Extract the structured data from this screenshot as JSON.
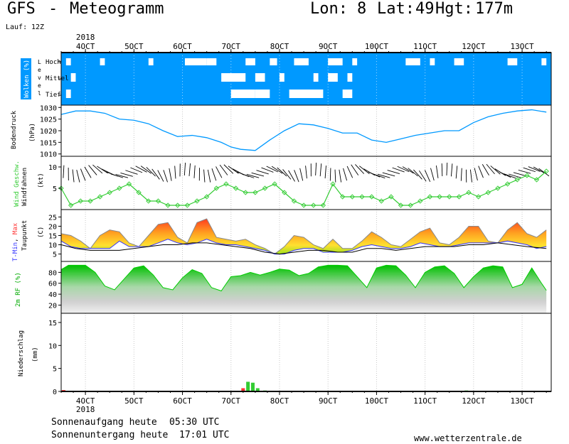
{
  "header": {
    "model": "GFS",
    "dash": "-",
    "product": "Meteogramm",
    "lon_label": "Lon:",
    "lon": "8",
    "lat_label": "Lat:",
    "lat": "49",
    "hgt_label": "Hgt:",
    "hgt": "177m",
    "run_label": "Lauf:",
    "run": "12Z"
  },
  "axis": {
    "year": "2018",
    "dates": [
      "4OCT",
      "5OCT",
      "6OCT",
      "7OCT",
      "8OCT",
      "9OCT",
      "10OCT",
      "11OCT",
      "12OCT",
      "13OCT"
    ]
  },
  "footer": {
    "sunrise_label": "Sonnenaufgang heute",
    "sunrise": "05:30 UTC",
    "sunset_label": "Sonnenuntergang heute",
    "sunset": "17:01 UTC",
    "website": "www.wetterzentrale.de"
  },
  "colors": {
    "cloud_bg": "#0099ff",
    "pressure": "#0099ff",
    "wind": "#33cc33",
    "tmax": "#ff3333",
    "tmin": "#3333ff",
    "rh": "#00cc00",
    "precip": "#33cc33"
  },
  "chart_data": [
    {
      "type": "heatmap",
      "panel": "clouds",
      "ylabel": "Wolken (%)",
      "axis_label": "Level",
      "levels": [
        "Hoch",
        "Mittel",
        "Tief"
      ],
      "hoch_blocks": [
        [
          3.6,
          3.7
        ],
        [
          4.3,
          4.4
        ],
        [
          5.3,
          5.4
        ],
        [
          6.05,
          6.5
        ],
        [
          6.5,
          6.7
        ],
        [
          7.3,
          7.5
        ],
        [
          7.8,
          7.95
        ],
        [
          8.3,
          8.6
        ],
        [
          9.0,
          9.3
        ],
        [
          9.5,
          9.6
        ],
        [
          10.6,
          10.9
        ],
        [
          11.1,
          11.2
        ],
        [
          11.6,
          11.8
        ],
        [
          12.7,
          12.9
        ],
        [
          13.4,
          13.5
        ]
      ],
      "mittel_blocks": [
        [
          3.7,
          3.8
        ],
        [
          6.8,
          7.3
        ],
        [
          7.5,
          7.7
        ],
        [
          8.0,
          8.1
        ],
        [
          8.7,
          8.8
        ],
        [
          9.0,
          9.2
        ],
        [
          9.4,
          9.5
        ]
      ],
      "tief_blocks": [
        [
          3.6,
          3.7
        ],
        [
          7.0,
          7.5
        ],
        [
          7.5,
          7.8
        ],
        [
          8.2,
          8.9
        ],
        [
          9.3,
          9.5
        ]
      ]
    },
    {
      "type": "line",
      "panel": "pressure",
      "ylabel": "Bodendruck (hPa)",
      "ylim": [
        1009,
        1031
      ],
      "yticks": [
        1010,
        1015,
        1020,
        1025,
        1030
      ],
      "x": [
        3.5,
        3.8,
        4.1,
        4.4,
        4.7,
        5.0,
        5.3,
        5.6,
        5.9,
        6.2,
        6.5,
        6.8,
        7.0,
        7.2,
        7.5,
        7.8,
        8.1,
        8.4,
        8.7,
        9.0,
        9.3,
        9.6,
        9.9,
        10.2,
        10.5,
        10.8,
        11.1,
        11.4,
        11.7,
        12.0,
        12.3,
        12.6,
        12.9,
        13.2,
        13.5
      ],
      "values": [
        1027,
        1028.5,
        1028.5,
        1027.5,
        1025,
        1024.5,
        1023,
        1020,
        1017.5,
        1018,
        1017,
        1015,
        1013,
        1012,
        1011.5,
        1016,
        1020,
        1023,
        1022.5,
        1021,
        1019,
        1019,
        1016,
        1015,
        1016.5,
        1018,
        1019,
        1020,
        1020,
        1023.5,
        1026,
        1027.5,
        1028.5,
        1029,
        1028
      ]
    },
    {
      "type": "line",
      "panel": "wind",
      "ylabel": "Wind Geschw. (kt)",
      "ylabel2": "Windfahnen",
      "ylim": [
        0,
        12.5
      ],
      "yticks": [
        5,
        10
      ],
      "x": [
        3.5,
        3.7,
        3.9,
        4.1,
        4.3,
        4.5,
        4.7,
        4.9,
        5.1,
        5.3,
        5.5,
        5.7,
        5.9,
        6.1,
        6.3,
        6.5,
        6.7,
        6.9,
        7.1,
        7.3,
        7.5,
        7.7,
        7.9,
        8.1,
        8.3,
        8.5,
        8.7,
        8.9,
        9.1,
        9.3,
        9.5,
        9.7,
        9.9,
        10.1,
        10.3,
        10.5,
        10.7,
        10.9,
        11.1,
        11.3,
        11.5,
        11.7,
        11.9,
        12.1,
        12.3,
        12.5,
        12.7,
        12.9,
        13.1,
        13.3,
        13.5
      ],
      "values": [
        5,
        1,
        2,
        2,
        3,
        4,
        5,
        6,
        4,
        2,
        2,
        1,
        1,
        1,
        2,
        3,
        5,
        6,
        5,
        4,
        4,
        5,
        6,
        4,
        2,
        1,
        1,
        1,
        6,
        3,
        3,
        3,
        3,
        2,
        3,
        1,
        1,
        2,
        3,
        3,
        3,
        3,
        4,
        3,
        4,
        5,
        6,
        7,
        8,
        7,
        9
      ]
    },
    {
      "type": "area",
      "panel": "temperature",
      "ylabel": "T-Min, Max (C)",
      "ylabel2": "Taupunkt",
      "ylim": [
        1,
        29
      ],
      "yticks": [
        5,
        10,
        15,
        20,
        25
      ],
      "series": [
        {
          "name": "T-Max",
          "x": [
            3.5,
            3.7,
            3.9,
            4.1,
            4.3,
            4.5,
            4.7,
            4.9,
            5.1,
            5.3,
            5.5,
            5.7,
            5.9,
            6.1,
            6.3,
            6.5,
            6.7,
            6.9,
            7.1,
            7.3,
            7.5,
            7.7,
            7.9,
            8.1,
            8.3,
            8.5,
            8.7,
            8.9,
            9.1,
            9.3,
            9.5,
            9.7,
            9.9,
            10.1,
            10.3,
            10.5,
            10.7,
            10.9,
            11.1,
            11.3,
            11.5,
            11.7,
            11.9,
            12.1,
            12.3,
            12.5,
            12.7,
            12.9,
            13.1,
            13.3,
            13.5
          ],
          "values": [
            16,
            15,
            12,
            8,
            15,
            18,
            17,
            11,
            9,
            15,
            21,
            22,
            14,
            11,
            22,
            24,
            14,
            13,
            12,
            13,
            10,
            8,
            5,
            9,
            15,
            14,
            10,
            8,
            13,
            8,
            8,
            12,
            17,
            14,
            10,
            9,
            13,
            17,
            19,
            11,
            10,
            14,
            20,
            20,
            12,
            11,
            18,
            22,
            16,
            14,
            18
          ]
        },
        {
          "name": "T-Min",
          "x": [
            3.5,
            3.7,
            3.9,
            4.1,
            4.3,
            4.5,
            4.7,
            4.9,
            5.1,
            5.3,
            5.5,
            5.7,
            5.9,
            6.1,
            6.3,
            6.5,
            6.7,
            6.9,
            7.1,
            7.3,
            7.5,
            7.7,
            7.9,
            8.1,
            8.3,
            8.5,
            8.7,
            8.9,
            9.1,
            9.3,
            9.5,
            9.7,
            9.9,
            10.1,
            10.3,
            10.5,
            10.7,
            10.9,
            11.1,
            11.3,
            11.5,
            11.7,
            11.9,
            12.1,
            12.3,
            12.5,
            12.7,
            12.9,
            13.1,
            13.3,
            13.5
          ],
          "values": [
            12,
            9,
            8,
            8,
            8,
            8,
            12,
            9,
            9,
            9,
            11,
            13,
            11,
            10,
            11,
            13,
            11,
            10,
            10,
            9,
            8,
            7,
            5,
            5,
            7,
            8,
            8,
            6,
            6,
            6,
            7,
            9,
            10,
            9,
            8,
            8,
            9,
            11,
            10,
            9,
            9,
            10,
            11,
            11,
            11,
            11,
            12,
            11,
            10,
            8,
            9
          ]
        },
        {
          "name": "Taupunkt",
          "x": [
            3.5,
            3.8,
            4.1,
            4.4,
            4.7,
            5.0,
            5.3,
            5.6,
            5.9,
            6.2,
            6.5,
            6.8,
            7.1,
            7.4,
            7.7,
            8.0,
            8.3,
            8.6,
            8.9,
            9.2,
            9.5,
            9.8,
            10.1,
            10.4,
            10.7,
            11.0,
            11.3,
            11.6,
            11.9,
            12.2,
            12.5,
            12.8,
            13.1,
            13.5
          ],
          "values": [
            10,
            8,
            7,
            7,
            7,
            8,
            9,
            10,
            10,
            11,
            11,
            10,
            9,
            8,
            6,
            5,
            6,
            7,
            7,
            6,
            6,
            8,
            8,
            7,
            8,
            9,
            9,
            9,
            10,
            10,
            11,
            10,
            9,
            8
          ]
        }
      ]
    },
    {
      "type": "area",
      "panel": "humidity",
      "ylabel": "2m RF (%)",
      "ylim": [
        5,
        100
      ],
      "yticks": [
        20,
        40,
        60,
        80
      ],
      "x": [
        3.5,
        3.65,
        3.8,
        4.0,
        4.2,
        4.4,
        4.6,
        4.8,
        5.0,
        5.2,
        5.4,
        5.6,
        5.8,
        6.0,
        6.2,
        6.4,
        6.6,
        6.8,
        7.0,
        7.2,
        7.4,
        7.6,
        7.8,
        8.0,
        8.2,
        8.4,
        8.6,
        8.8,
        9.0,
        9.2,
        9.4,
        9.6,
        9.8,
        10.0,
        10.2,
        10.4,
        10.6,
        10.8,
        11.0,
        11.2,
        11.4,
        11.6,
        11.8,
        12.0,
        12.2,
        12.4,
        12.6,
        12.8,
        13.0,
        13.2,
        13.4,
        13.5
      ],
      "values": [
        85,
        93,
        93,
        93,
        80,
        55,
        48,
        68,
        88,
        92,
        75,
        52,
        48,
        70,
        85,
        78,
        52,
        46,
        72,
        74,
        80,
        75,
        80,
        86,
        84,
        74,
        78,
        90,
        93,
        93,
        92,
        72,
        52,
        88,
        93,
        92,
        75,
        52,
        80,
        90,
        92,
        78,
        52,
        72,
        88,
        92,
        90,
        52,
        58,
        88,
        60,
        47
      ]
    },
    {
      "type": "bar",
      "panel": "precipitation",
      "ylabel": "Niederschlag (mm)",
      "ylim": [
        0,
        17
      ],
      "yticks": [
        0,
        5,
        10,
        15
      ],
      "bars": [
        {
          "x": 3.55,
          "value": 0.3,
          "color": "#ff3333"
        },
        {
          "x": 7.25,
          "value": 0.7,
          "color": "#ff3333"
        },
        {
          "x": 7.35,
          "value": 2.1,
          "color": "#33cc33"
        },
        {
          "x": 7.45,
          "value": 1.9,
          "color": "#33cc33"
        },
        {
          "x": 7.55,
          "value": 0.7,
          "color": "#33cc33"
        },
        {
          "x": 7.7,
          "value": 0.2,
          "color": "#33cc33"
        },
        {
          "x": 11.85,
          "value": 0.2,
          "color": "#33cc33"
        }
      ]
    }
  ]
}
